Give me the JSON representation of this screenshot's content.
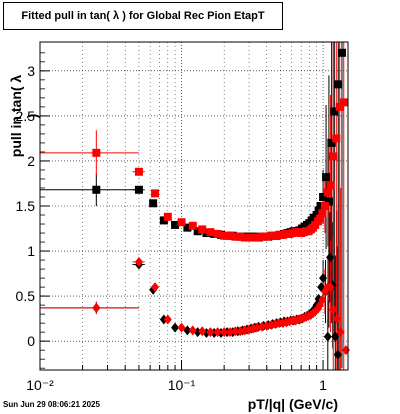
{
  "chart_data": {
    "type": "scatter",
    "title": "Fitted pull in tan( λ ) for Global Rec Pion EtapT",
    "xlabel": "pT/|q| (GeV/c)",
    "ylabel": "pull in tan( λ )",
    "xscale": "log",
    "xlim": [
      0.01,
      1.5
    ],
    "ylim": [
      -0.32,
      3.32
    ],
    "x_tick_labels": [
      {
        "value": 0.01,
        "label": "10⁻²"
      },
      {
        "value": 0.1,
        "label": "10⁻¹"
      },
      {
        "value": 1,
        "label": "1"
      }
    ],
    "y_ticks": [
      0,
      0.5,
      1,
      1.5,
      2,
      2.5,
      3
    ],
    "y_tick_labels": [
      "0",
      "0.5",
      "1",
      "1.5",
      "2",
      "2.5",
      "3"
    ],
    "grid": true,
    "footer": "Sun Jun 29 08:06:21 2025",
    "series": [
      {
        "marker": "square",
        "color": "#000000",
        "points": [
          {
            "x": 0.025,
            "y": 1.68,
            "xerr": [
              0.015,
              0.025
            ],
            "yerr": 0.18
          },
          {
            "x": 0.05,
            "y": 1.68,
            "xerr": [
              0.005,
              0.005
            ],
            "yerr": 0.04
          },
          {
            "x": 0.063,
            "y": 1.53
          },
          {
            "x": 0.075,
            "y": 1.34
          },
          {
            "x": 0.09,
            "y": 1.29
          },
          {
            "x": 0.11,
            "y": 1.26
          },
          {
            "x": 0.13,
            "y": 1.22
          },
          {
            "x": 0.15,
            "y": 1.2
          },
          {
            "x": 0.17,
            "y": 1.19
          },
          {
            "x": 0.19,
            "y": 1.18
          },
          {
            "x": 0.21,
            "y": 1.17
          },
          {
            "x": 0.23,
            "y": 1.17
          },
          {
            "x": 0.25,
            "y": 1.16
          },
          {
            "x": 0.27,
            "y": 1.16
          },
          {
            "x": 0.29,
            "y": 1.16
          },
          {
            "x": 0.31,
            "y": 1.16
          },
          {
            "x": 0.33,
            "y": 1.16
          },
          {
            "x": 0.35,
            "y": 1.15
          },
          {
            "x": 0.38,
            "y": 1.16
          },
          {
            "x": 0.41,
            "y": 1.16
          },
          {
            "x": 0.44,
            "y": 1.17
          },
          {
            "x": 0.47,
            "y": 1.17
          },
          {
            "x": 0.5,
            "y": 1.18
          },
          {
            "x": 0.53,
            "y": 1.19
          },
          {
            "x": 0.56,
            "y": 1.2
          },
          {
            "x": 0.59,
            "y": 1.21
          },
          {
            "x": 0.62,
            "y": 1.22
          },
          {
            "x": 0.65,
            "y": 1.22
          },
          {
            "x": 0.68,
            "y": 1.23
          },
          {
            "x": 0.71,
            "y": 1.25
          },
          {
            "x": 0.74,
            "y": 1.27
          },
          {
            "x": 0.77,
            "y": 1.29
          },
          {
            "x": 0.8,
            "y": 1.31
          },
          {
            "x": 0.83,
            "y": 1.34
          },
          {
            "x": 0.86,
            "y": 1.37
          },
          {
            "x": 0.9,
            "y": 1.4
          },
          {
            "x": 0.93,
            "y": 1.45
          },
          {
            "x": 0.96,
            "y": 1.5
          },
          {
            "x": 1.0,
            "y": 1.6,
            "yerr": 0.3
          },
          {
            "x": 1.05,
            "y": 1.82,
            "yerr": 0.8
          },
          {
            "x": 1.1,
            "y": 1.55,
            "yerr": 1.4
          },
          {
            "x": 1.15,
            "y": 2.2,
            "yerr": 2.0
          },
          {
            "x": 1.2,
            "y": 2.55,
            "yerr": 2.5
          },
          {
            "x": 1.28,
            "y": 2.85,
            "yerr": 3.2
          },
          {
            "x": 1.36,
            "y": 3.2,
            "yerr": 3.5
          }
        ]
      },
      {
        "marker": "square",
        "color": "#ff0000",
        "points": [
          {
            "x": 0.025,
            "y": 2.09,
            "xerr": [
              0.015,
              0.025
            ],
            "yerr": 0.25
          },
          {
            "x": 0.05,
            "y": 1.88,
            "xerr": [
              0.005,
              0.005
            ],
            "yerr": 0.04
          },
          {
            "x": 0.065,
            "y": 1.64
          },
          {
            "x": 0.08,
            "y": 1.38
          },
          {
            "x": 0.1,
            "y": 1.32
          },
          {
            "x": 0.12,
            "y": 1.28
          },
          {
            "x": 0.14,
            "y": 1.24
          },
          {
            "x": 0.16,
            "y": 1.21
          },
          {
            "x": 0.18,
            "y": 1.19
          },
          {
            "x": 0.2,
            "y": 1.17
          },
          {
            "x": 0.22,
            "y": 1.17
          },
          {
            "x": 0.24,
            "y": 1.16
          },
          {
            "x": 0.26,
            "y": 1.16
          },
          {
            "x": 0.28,
            "y": 1.15
          },
          {
            "x": 0.3,
            "y": 1.15
          },
          {
            "x": 0.32,
            "y": 1.15
          },
          {
            "x": 0.34,
            "y": 1.15
          },
          {
            "x": 0.37,
            "y": 1.16
          },
          {
            "x": 0.4,
            "y": 1.16
          },
          {
            "x": 0.43,
            "y": 1.17
          },
          {
            "x": 0.46,
            "y": 1.17
          },
          {
            "x": 0.49,
            "y": 1.18
          },
          {
            "x": 0.52,
            "y": 1.18
          },
          {
            "x": 0.55,
            "y": 1.19
          },
          {
            "x": 0.58,
            "y": 1.19
          },
          {
            "x": 0.61,
            "y": 1.2
          },
          {
            "x": 0.64,
            "y": 1.21
          },
          {
            "x": 0.67,
            "y": 1.21
          },
          {
            "x": 0.7,
            "y": 1.2
          },
          {
            "x": 0.73,
            "y": 1.21
          },
          {
            "x": 0.76,
            "y": 1.22
          },
          {
            "x": 0.79,
            "y": 1.22
          },
          {
            "x": 0.82,
            "y": 1.24
          },
          {
            "x": 0.85,
            "y": 1.26
          },
          {
            "x": 0.88,
            "y": 1.29
          },
          {
            "x": 0.92,
            "y": 1.33
          },
          {
            "x": 0.95,
            "y": 1.36
          },
          {
            "x": 0.99,
            "y": 1.42
          },
          {
            "x": 1.03,
            "y": 1.5,
            "yerr": 0.3
          },
          {
            "x": 1.08,
            "y": 1.65,
            "yerr": 0.6
          },
          {
            "x": 1.13,
            "y": 1.73,
            "yerr": 1.0
          },
          {
            "x": 1.18,
            "y": 2.05,
            "yerr": 1.5
          },
          {
            "x": 1.24,
            "y": 2.25,
            "yerr": 2.0
          },
          {
            "x": 1.31,
            "y": 2.6,
            "yerr": 3.0
          },
          {
            "x": 1.4,
            "y": 2.65,
            "yerr": 3.5
          }
        ]
      },
      {
        "marker": "diamond",
        "color": "#000000",
        "points": [
          {
            "x": 0.025,
            "y": 0.37,
            "xerr": [
              0.015,
              0.025
            ],
            "yerr": 0.06
          },
          {
            "x": 0.05,
            "y": 0.85,
            "xerr": [
              0.005,
              0.005
            ],
            "yerr": 0.03
          },
          {
            "x": 0.063,
            "y": 0.57
          },
          {
            "x": 0.075,
            "y": 0.24
          },
          {
            "x": 0.09,
            "y": 0.15
          },
          {
            "x": 0.11,
            "y": 0.12
          },
          {
            "x": 0.13,
            "y": 0.1
          },
          {
            "x": 0.15,
            "y": 0.09
          },
          {
            "x": 0.17,
            "y": 0.09
          },
          {
            "x": 0.19,
            "y": 0.09
          },
          {
            "x": 0.21,
            "y": 0.1
          },
          {
            "x": 0.23,
            "y": 0.1
          },
          {
            "x": 0.25,
            "y": 0.11
          },
          {
            "x": 0.27,
            "y": 0.12
          },
          {
            "x": 0.29,
            "y": 0.13
          },
          {
            "x": 0.31,
            "y": 0.14
          },
          {
            "x": 0.33,
            "y": 0.15
          },
          {
            "x": 0.35,
            "y": 0.16
          },
          {
            "x": 0.38,
            "y": 0.17
          },
          {
            "x": 0.41,
            "y": 0.18
          },
          {
            "x": 0.44,
            "y": 0.19
          },
          {
            "x": 0.47,
            "y": 0.2
          },
          {
            "x": 0.5,
            "y": 0.21
          },
          {
            "x": 0.53,
            "y": 0.22
          },
          {
            "x": 0.56,
            "y": 0.22
          },
          {
            "x": 0.59,
            "y": 0.23
          },
          {
            "x": 0.62,
            "y": 0.23
          },
          {
            "x": 0.65,
            "y": 0.24
          },
          {
            "x": 0.68,
            "y": 0.24
          },
          {
            "x": 0.71,
            "y": 0.25
          },
          {
            "x": 0.74,
            "y": 0.27
          },
          {
            "x": 0.77,
            "y": 0.28
          },
          {
            "x": 0.8,
            "y": 0.3
          },
          {
            "x": 0.83,
            "y": 0.32
          },
          {
            "x": 0.86,
            "y": 0.35
          },
          {
            "x": 0.9,
            "y": 0.4
          },
          {
            "x": 0.93,
            "y": 0.47
          },
          {
            "x": 0.97,
            "y": 0.6
          },
          {
            "x": 1.0,
            "y": 0.7,
            "yerr": 0.2
          },
          {
            "x": 1.04,
            "y": 0.55,
            "yerr": 0.35
          },
          {
            "x": 1.08,
            "y": 0.05,
            "yerr": 0.4
          },
          {
            "x": 1.12,
            "y": 0.93,
            "yerr": 0.5
          },
          {
            "x": 1.17,
            "y": 0.62,
            "yerr": 0.7
          },
          {
            "x": 1.22,
            "y": 0.05,
            "yerr": 0.9
          },
          {
            "x": 1.27,
            "y": -0.15,
            "yerr": 1.2
          }
        ]
      },
      {
        "marker": "diamond",
        "color": "#ff0000",
        "points": [
          {
            "x": 0.025,
            "y": 0.37,
            "xerr": [
              0.015,
              0.025
            ],
            "yerr": 0.07
          },
          {
            "x": 0.05,
            "y": 0.88,
            "xerr": [
              0.005,
              0.005
            ],
            "yerr": 0.03
          },
          {
            "x": 0.065,
            "y": 0.6
          },
          {
            "x": 0.08,
            "y": 0.24
          },
          {
            "x": 0.1,
            "y": 0.15
          },
          {
            "x": 0.12,
            "y": 0.12
          },
          {
            "x": 0.14,
            "y": 0.11
          },
          {
            "x": 0.16,
            "y": 0.1
          },
          {
            "x": 0.18,
            "y": 0.1
          },
          {
            "x": 0.2,
            "y": 0.1
          },
          {
            "x": 0.22,
            "y": 0.1
          },
          {
            "x": 0.24,
            "y": 0.11
          },
          {
            "x": 0.26,
            "y": 0.11
          },
          {
            "x": 0.28,
            "y": 0.12
          },
          {
            "x": 0.3,
            "y": 0.13
          },
          {
            "x": 0.32,
            "y": 0.14
          },
          {
            "x": 0.34,
            "y": 0.15
          },
          {
            "x": 0.37,
            "y": 0.16
          },
          {
            "x": 0.4,
            "y": 0.17
          },
          {
            "x": 0.43,
            "y": 0.18
          },
          {
            "x": 0.46,
            "y": 0.19
          },
          {
            "x": 0.49,
            "y": 0.2
          },
          {
            "x": 0.52,
            "y": 0.2
          },
          {
            "x": 0.55,
            "y": 0.21
          },
          {
            "x": 0.58,
            "y": 0.22
          },
          {
            "x": 0.61,
            "y": 0.23
          },
          {
            "x": 0.64,
            "y": 0.23
          },
          {
            "x": 0.67,
            "y": 0.24
          },
          {
            "x": 0.7,
            "y": 0.25
          },
          {
            "x": 0.73,
            "y": 0.26
          },
          {
            "x": 0.76,
            "y": 0.27
          },
          {
            "x": 0.79,
            "y": 0.28
          },
          {
            "x": 0.82,
            "y": 0.29
          },
          {
            "x": 0.85,
            "y": 0.31
          },
          {
            "x": 0.88,
            "y": 0.33
          },
          {
            "x": 0.92,
            "y": 0.36
          },
          {
            "x": 0.95,
            "y": 0.4
          },
          {
            "x": 0.99,
            "y": 0.46
          },
          {
            "x": 1.03,
            "y": 0.55,
            "yerr": 0.25
          },
          {
            "x": 1.08,
            "y": 0.6,
            "yerr": 0.35
          },
          {
            "x": 1.13,
            "y": 0.6,
            "yerr": 0.5
          },
          {
            "x": 1.18,
            "y": 0.35,
            "yerr": 0.8
          },
          {
            "x": 1.25,
            "y": 0.25,
            "yerr": 1.2
          },
          {
            "x": 1.33,
            "y": 0.1,
            "yerr": 1.6
          },
          {
            "x": 1.45,
            "y": -0.1
          }
        ]
      }
    ]
  }
}
